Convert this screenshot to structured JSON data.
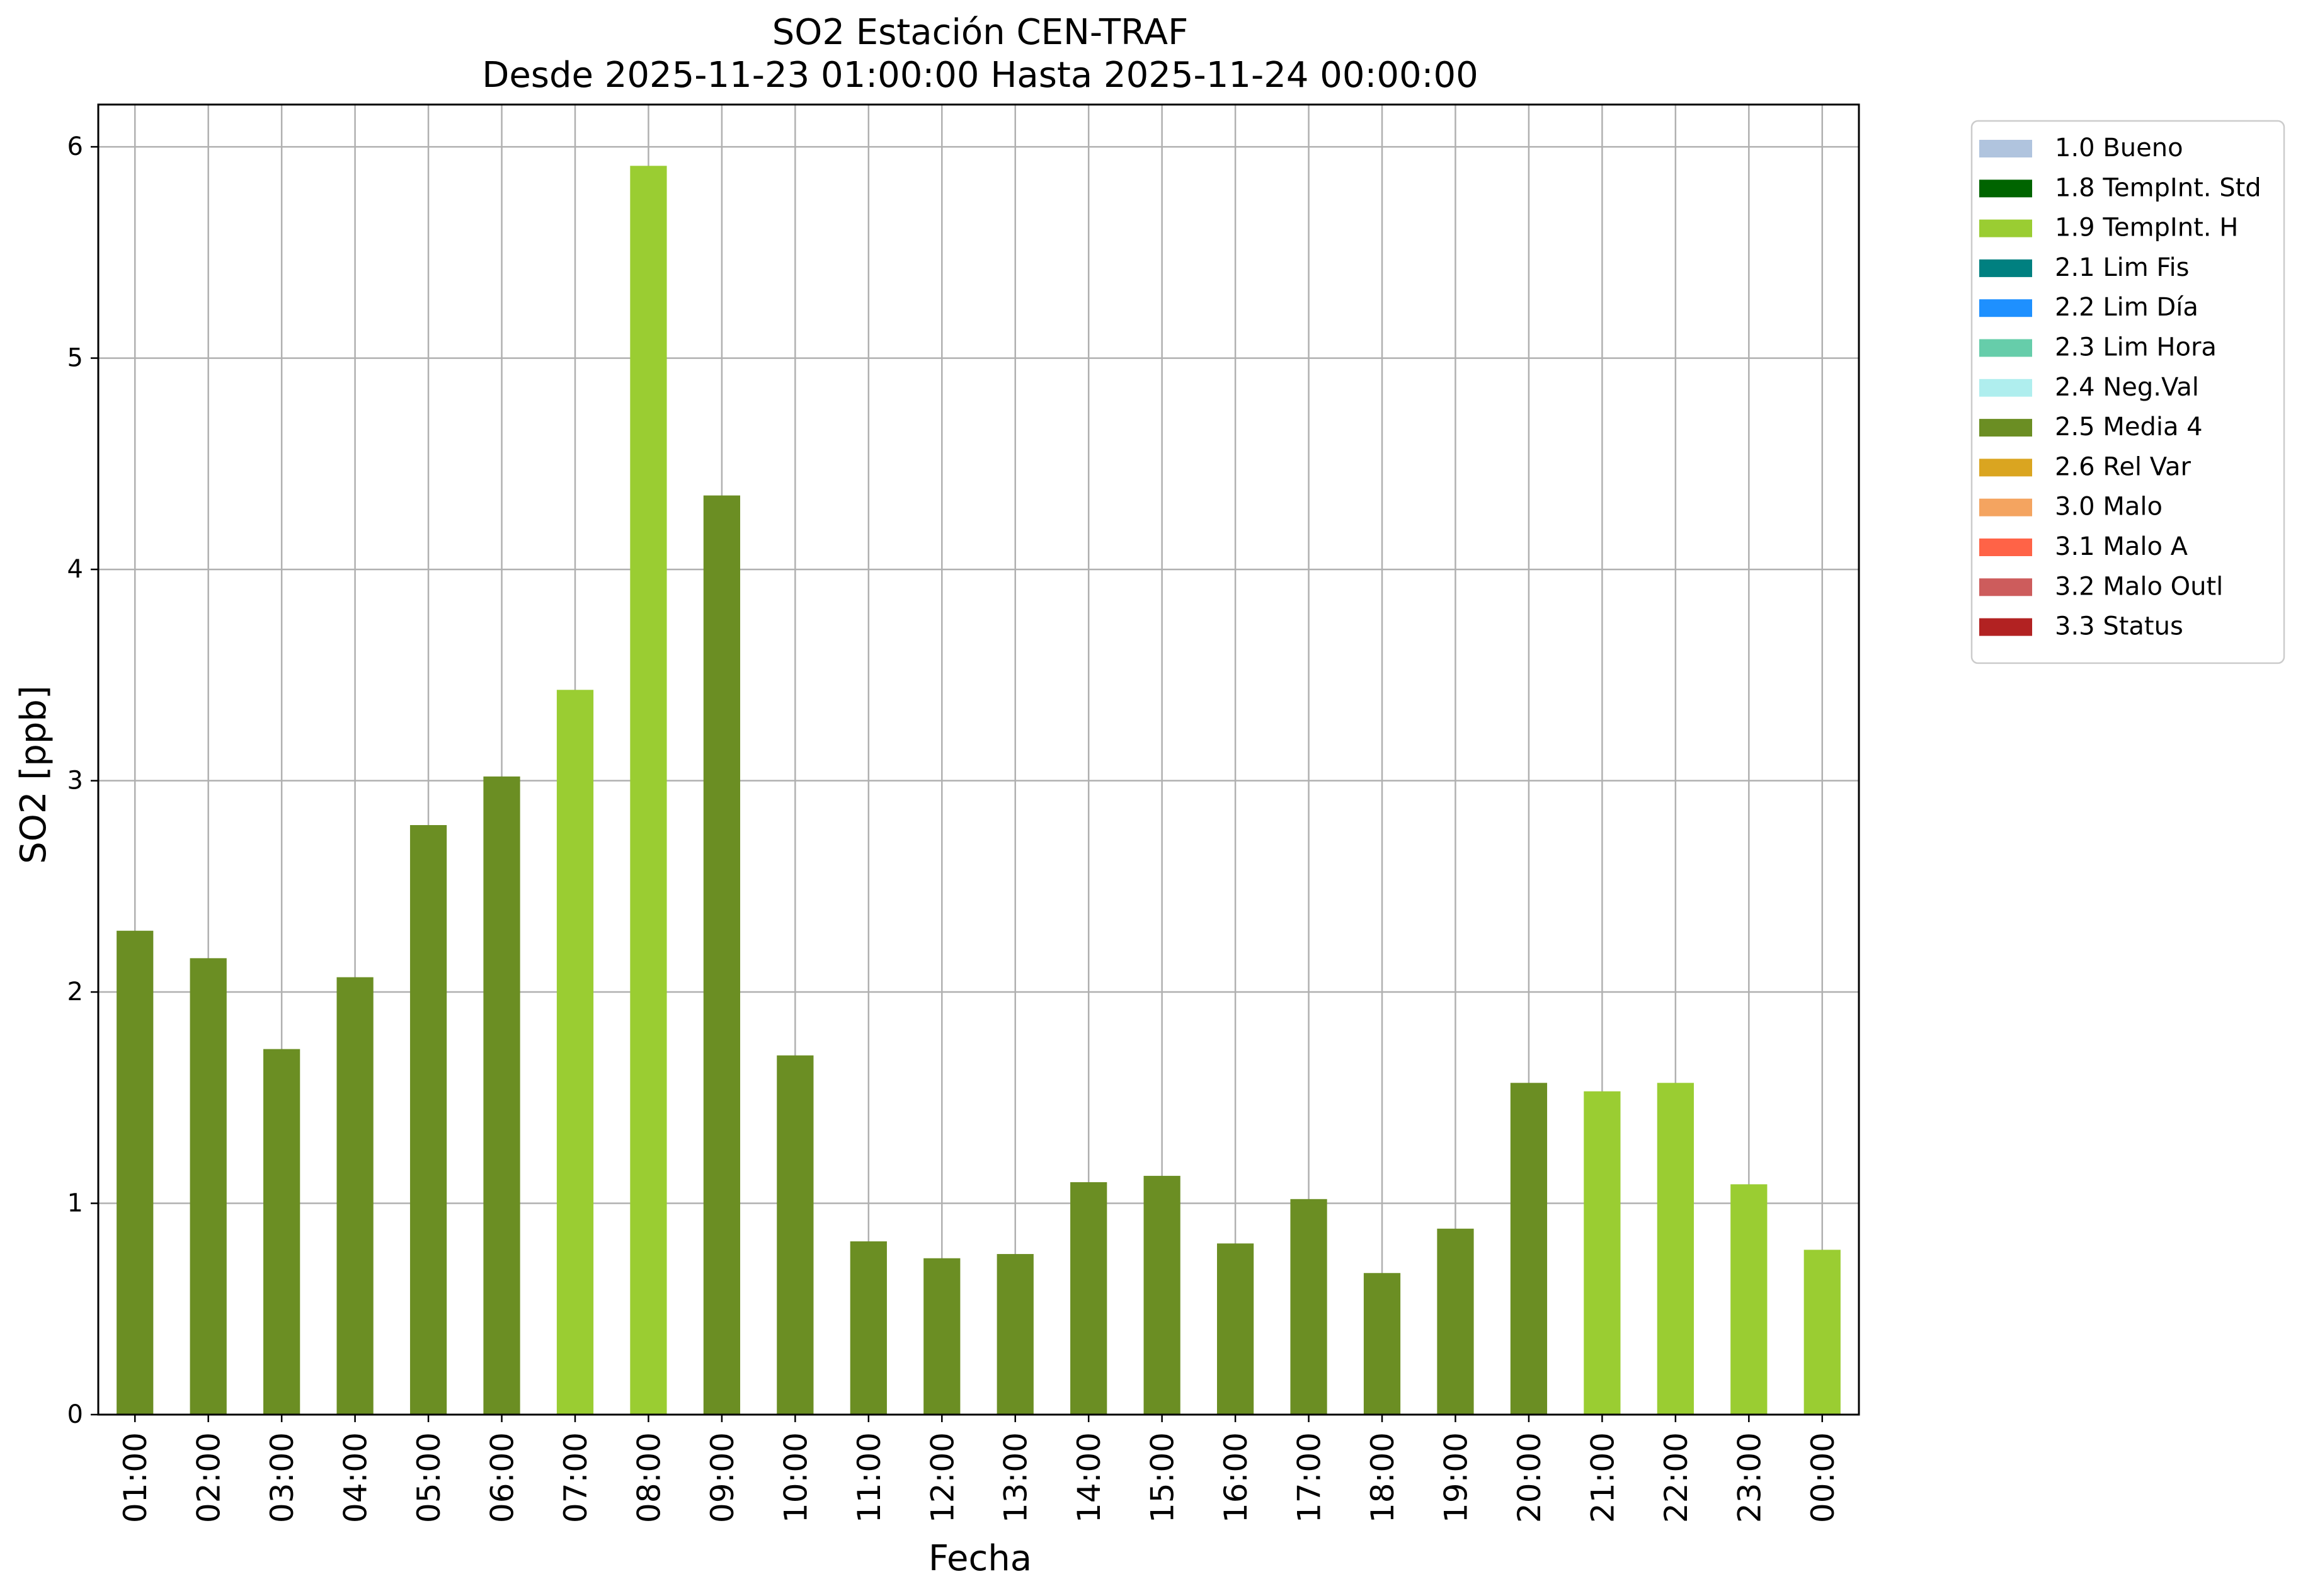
{
  "chart_data": {
    "type": "bar",
    "title": "SO2 Estación CEN-TRAF",
    "subtitle": "Desde 2025-11-23 01:00:00 Hasta 2025-11-24 00:00:00",
    "xlabel": "Fecha",
    "ylabel": "SO2 [ppb]",
    "ylim": [
      0,
      6.2
    ],
    "yticks": [
      0,
      1,
      2,
      3,
      4,
      5,
      6
    ],
    "grid": true,
    "legend_position": "outside-top-right",
    "categories": [
      "01:00",
      "02:00",
      "03:00",
      "04:00",
      "05:00",
      "06:00",
      "07:00",
      "08:00",
      "09:00",
      "10:00",
      "11:00",
      "12:00",
      "13:00",
      "14:00",
      "15:00",
      "16:00",
      "17:00",
      "18:00",
      "19:00",
      "20:00",
      "21:00",
      "22:00",
      "23:00",
      "00:00"
    ],
    "values": [
      2.29,
      2.16,
      1.73,
      2.07,
      2.79,
      3.02,
      3.43,
      5.91,
      4.35,
      1.7,
      0.82,
      0.74,
      0.76,
      1.1,
      1.13,
      0.81,
      1.02,
      0.67,
      0.88,
      1.57,
      1.53,
      1.57,
      1.09,
      0.78
    ],
    "flags": [
      "2.5 Media 4",
      "2.5 Media 4",
      "2.5 Media 4",
      "2.5 Media 4",
      "2.5 Media 4",
      "2.5 Media 4",
      "1.9 TempInt. H",
      "1.9 TempInt. H",
      "2.5 Media 4",
      "2.5 Media 4",
      "2.5 Media 4",
      "2.5 Media 4",
      "2.5 Media 4",
      "2.5 Media 4",
      "2.5 Media 4",
      "2.5 Media 4",
      "2.5 Media 4",
      "2.5 Media 4",
      "2.5 Media 4",
      "2.5 Media 4",
      "1.9 TempInt. H",
      "1.9 TempInt. H",
      "1.9 TempInt. H",
      "1.9 TempInt. H"
    ],
    "legend": [
      {
        "label": "1.0 Bueno",
        "color": "#b0c4de"
      },
      {
        "label": "1.8 TempInt. Std",
        "color": "#006400"
      },
      {
        "label": "1.9 TempInt. H",
        "color": "#9acd32"
      },
      {
        "label": "2.1 Lim Fis",
        "color": "#008080"
      },
      {
        "label": "2.2 Lim Día",
        "color": "#1e90ff"
      },
      {
        "label": "2.3 Lim Hora",
        "color": "#66cdaa"
      },
      {
        "label": "2.4 Neg.Val",
        "color": "#afeeee"
      },
      {
        "label": "2.5 Media 4",
        "color": "#6b8e23"
      },
      {
        "label": "2.6 Rel Var",
        "color": "#daa520"
      },
      {
        "label": "3.0 Malo",
        "color": "#f4a460"
      },
      {
        "label": "3.1 Malo A",
        "color": "#ff6347"
      },
      {
        "label": "3.2 Malo Outl",
        "color": "#cd5c5c"
      },
      {
        "label": "3.3 Status",
        "color": "#b22222"
      }
    ]
  }
}
